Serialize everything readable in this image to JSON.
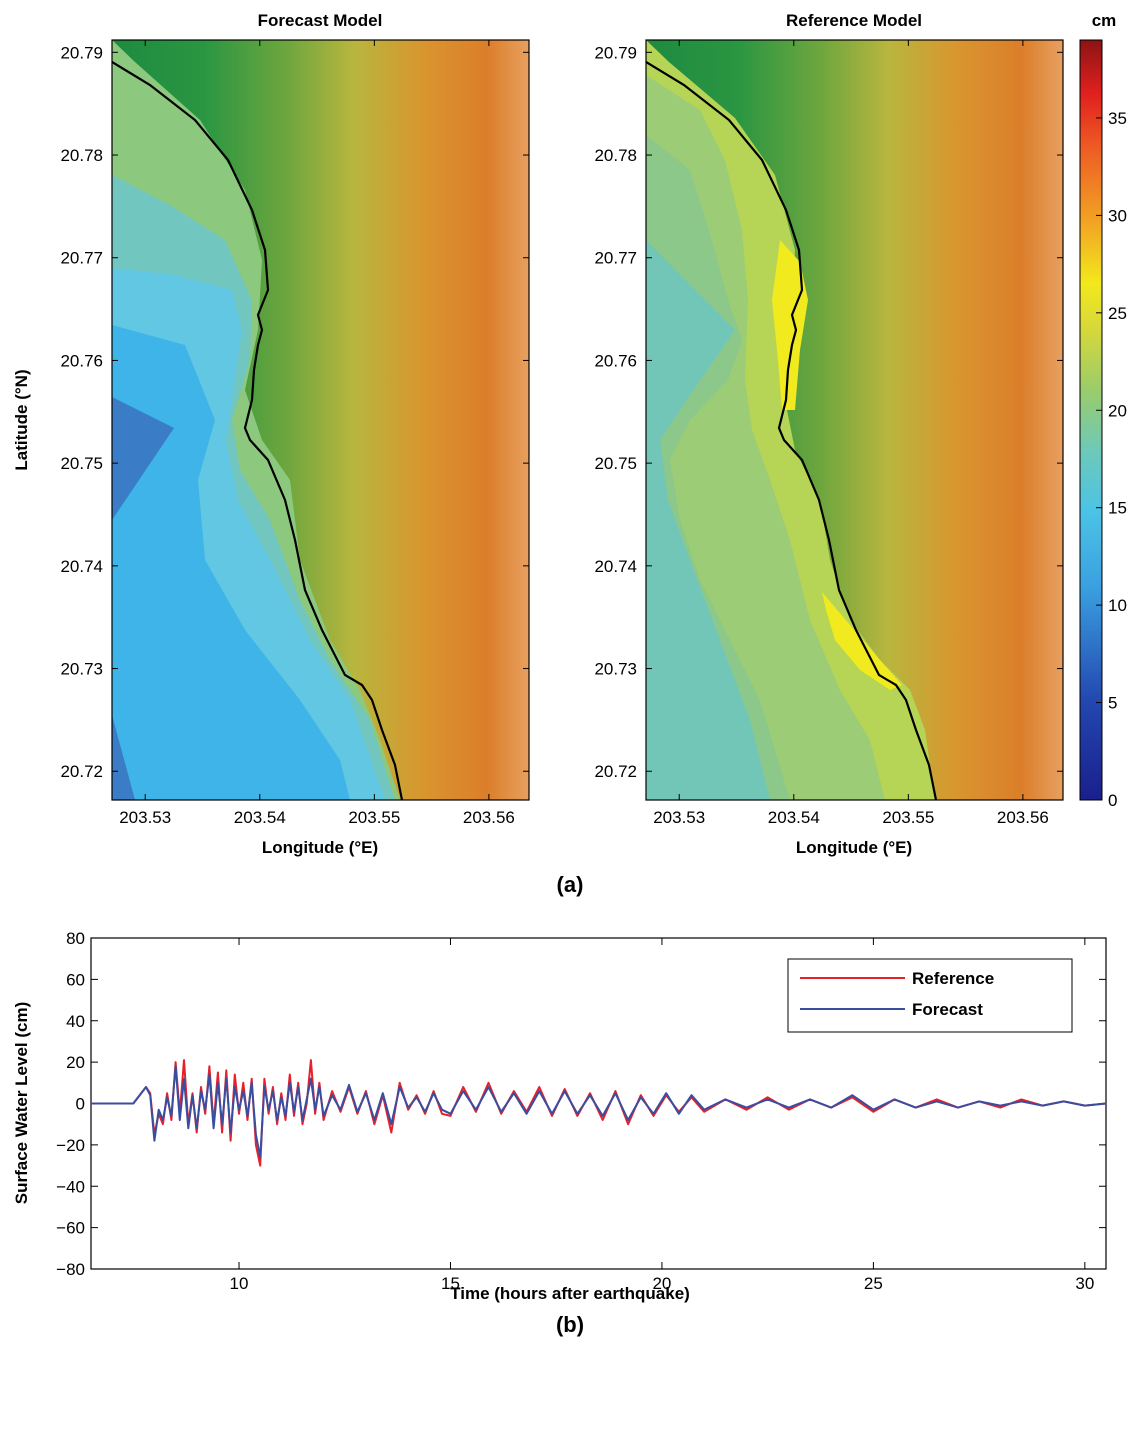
{
  "maps": {
    "left_title": "Forecast Model",
    "right_title": "Reference Model",
    "x_label": "Longitude (°E)",
    "y_label": "Latitude (°N)",
    "x_ticks": [
      "203.53",
      "203.54",
      "203.55",
      "203.56"
    ],
    "y_ticks": [
      "20.79",
      "20.78",
      "20.77",
      "20.76",
      "20.75",
      "20.74",
      "20.73",
      "20.72"
    ],
    "panel_label": "(a)"
  },
  "colorbar": {
    "unit": "cm",
    "ticks": [
      "35",
      "30",
      "25",
      "20",
      "15",
      "10",
      "5",
      "0"
    ],
    "range": [
      0,
      39
    ]
  },
  "chart_data": {
    "type": "line",
    "xlabel": "Time (hours after earthquake)",
    "ylabel": "Surface Water Level (cm)",
    "xlim": [
      6.5,
      30.5
    ],
    "ylim": [
      -80,
      80
    ],
    "x_ticks": [
      "10",
      "15",
      "20",
      "25",
      "30"
    ],
    "y_ticks": [
      "80",
      "60",
      "40",
      "20",
      "0",
      "−20",
      "−40",
      "−60",
      "−80"
    ],
    "legend_position": "top-right",
    "panel_label": "(b)",
    "series": [
      {
        "name": "Reference",
        "color": "#e8202a",
        "x": [
          6.5,
          7.5,
          7.8,
          7.9,
          8.0,
          8.1,
          8.2,
          8.3,
          8.4,
          8.5,
          8.6,
          8.7,
          8.8,
          8.9,
          9.0,
          9.1,
          9.2,
          9.3,
          9.4,
          9.5,
          9.6,
          9.7,
          9.8,
          9.9,
          10.0,
          10.1,
          10.2,
          10.3,
          10.4,
          10.5,
          10.6,
          10.7,
          10.8,
          10.9,
          11.0,
          11.1,
          11.2,
          11.3,
          11.4,
          11.5,
          11.6,
          11.7,
          11.8,
          11.9,
          12.0,
          12.2,
          12.4,
          12.6,
          12.8,
          13.0,
          13.2,
          13.4,
          13.6,
          13.8,
          14.0,
          14.2,
          14.4,
          14.6,
          14.8,
          15.0,
          15.3,
          15.6,
          15.9,
          16.2,
          16.5,
          16.8,
          17.1,
          17.4,
          17.7,
          18.0,
          18.3,
          18.6,
          18.9,
          19.2,
          19.5,
          19.8,
          20.1,
          20.4,
          20.7,
          21.0,
          21.5,
          22.0,
          22.5,
          23.0,
          23.5,
          24.0,
          24.5,
          25.0,
          25.5,
          26.0,
          26.5,
          27.0,
          27.5,
          28.0,
          28.5,
          29.0,
          29.5,
          30.0,
          30.5
        ],
        "y": [
          0,
          0,
          8,
          5,
          -15,
          -5,
          -10,
          5,
          -8,
          20,
          -5,
          21,
          -10,
          5,
          -14,
          8,
          -5,
          18,
          -10,
          15,
          -14,
          16,
          -18,
          14,
          -5,
          10,
          -8,
          12,
          -20,
          -30,
          12,
          -5,
          8,
          -10,
          5,
          -8,
          14,
          -6,
          10,
          -10,
          0,
          21,
          -5,
          10,
          -8,
          6,
          -4,
          8,
          -5,
          6,
          -10,
          4,
          -14,
          10,
          -3,
          4,
          -5,
          6,
          -5,
          -6,
          8,
          -4,
          10,
          -5,
          6,
          -4,
          8,
          -6,
          7,
          -6,
          5,
          -8,
          6,
          -10,
          4,
          -6,
          4,
          -4,
          3,
          -4,
          2,
          -3,
          3,
          -3,
          2,
          -2,
          3,
          -4,
          2,
          -2,
          2,
          -2,
          1,
          -2,
          2,
          -1,
          1,
          -1,
          0
        ]
      },
      {
        "name": "Forecast",
        "color": "#3a4ea0",
        "x": [
          6.5,
          7.5,
          7.8,
          7.9,
          8.0,
          8.1,
          8.2,
          8.3,
          8.4,
          8.5,
          8.6,
          8.7,
          8.8,
          8.9,
          9.0,
          9.1,
          9.2,
          9.3,
          9.4,
          9.5,
          9.6,
          9.7,
          9.8,
          9.9,
          10.0,
          10.1,
          10.2,
          10.3,
          10.4,
          10.5,
          10.6,
          10.7,
          10.8,
          10.9,
          11.0,
          11.1,
          11.2,
          11.3,
          11.4,
          11.5,
          11.6,
          11.7,
          11.8,
          11.9,
          12.0,
          12.2,
          12.4,
          12.6,
          12.8,
          13.0,
          13.2,
          13.4,
          13.6,
          13.8,
          14.0,
          14.2,
          14.4,
          14.6,
          14.8,
          15.0,
          15.3,
          15.6,
          15.9,
          16.2,
          16.5,
          16.8,
          17.1,
          17.4,
          17.7,
          18.0,
          18.3,
          18.6,
          18.9,
          19.2,
          19.5,
          19.8,
          20.1,
          20.4,
          20.7,
          21.0,
          21.5,
          22.0,
          22.5,
          23.0,
          23.5,
          24.0,
          24.5,
          25.0,
          25.5,
          26.0,
          26.5,
          27.0,
          27.5,
          28.0,
          28.5,
          29.0,
          29.5,
          30.0,
          30.5
        ],
        "y": [
          0,
          0,
          8,
          4,
          -18,
          -3,
          -8,
          3,
          -6,
          18,
          -8,
          12,
          -12,
          4,
          -12,
          6,
          -3,
          14,
          -12,
          10,
          -10,
          12,
          -14,
          8,
          -3,
          6,
          -6,
          10,
          -15,
          -26,
          8,
          -3,
          6,
          -8,
          3,
          -6,
          10,
          -4,
          8,
          -8,
          2,
          12,
          -3,
          8,
          -6,
          4,
          -3,
          9,
          -4,
          5,
          -8,
          5,
          -10,
          8,
          -2,
          3,
          -4,
          5,
          -3,
          -5,
          6,
          -3,
          8,
          -4,
          5,
          -5,
          6,
          -5,
          6,
          -5,
          4,
          -6,
          5,
          -8,
          3,
          -5,
          5,
          -5,
          4,
          -3,
          2,
          -2,
          2,
          -2,
          2,
          -2,
          4,
          -3,
          2,
          -2,
          1,
          -2,
          1,
          -1,
          1,
          -1,
          1,
          -1,
          0
        ]
      }
    ]
  }
}
